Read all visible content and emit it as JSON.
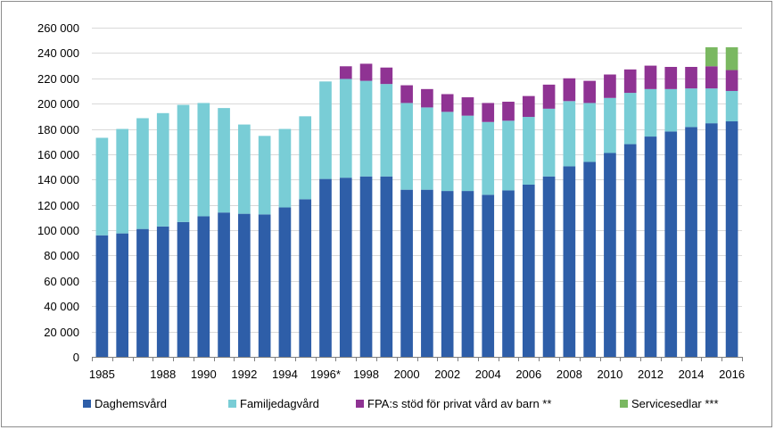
{
  "chart_data": {
    "type": "bar",
    "stacked": true,
    "categories": [
      "1985",
      "1986",
      "1987",
      "1988",
      "1989",
      "1990",
      "1991",
      "1992",
      "1993",
      "1994",
      "1995",
      "1996*",
      "1997",
      "1998",
      "1999",
      "2000",
      "2001",
      "2002",
      "2003",
      "2004",
      "2005",
      "2006",
      "2007",
      "2008",
      "2009",
      "2010",
      "2011",
      "2012",
      "2013",
      "2014",
      "2015",
      "2016"
    ],
    "x_tick_labels": [
      "1985",
      "",
      "",
      "1988",
      "",
      "1990",
      "",
      "1992",
      "",
      "1994",
      "",
      "1996*",
      "",
      "1998",
      "",
      "2000",
      "",
      "2002",
      "",
      "2004",
      "",
      "2006",
      "",
      "2008",
      "",
      "2010",
      "",
      "2012",
      "",
      "2014",
      "",
      "2016"
    ],
    "series": [
      {
        "name": "Daghemsvård",
        "color": "#2e5ea8",
        "values": [
          96000,
          97500,
          101000,
          103000,
          106500,
          111000,
          114000,
          113000,
          112500,
          118000,
          124500,
          140500,
          141500,
          142500,
          142500,
          132000,
          132000,
          131000,
          131000,
          128000,
          131500,
          136000,
          142500,
          150500,
          154000,
          161000,
          168000,
          174000,
          178000,
          181500,
          184500,
          186000
        ]
      },
      {
        "name": "Familjedagvård",
        "color": "#79cdd6",
        "values": [
          77000,
          82500,
          87500,
          89500,
          92500,
          89500,
          82500,
          70500,
          62000,
          62000,
          65500,
          77000,
          78000,
          75500,
          73000,
          68500,
          65000,
          62500,
          59500,
          57500,
          55000,
          53500,
          53500,
          51500,
          46500,
          43500,
          40500,
          37500,
          33500,
          30500,
          27500,
          24000
        ]
      },
      {
        "name": "FPA:s stöd  för privat vård av barn  **",
        "color": "#8f3393",
        "values": [
          0,
          0,
          0,
          0,
          0,
          0,
          0,
          0,
          0,
          0,
          0,
          0,
          10000,
          13500,
          13000,
          14000,
          14500,
          14000,
          14500,
          15000,
          15000,
          16500,
          19000,
          18000,
          17500,
          18500,
          18500,
          18500,
          17500,
          17000,
          17500,
          16500
        ]
      },
      {
        "name": "Servicesedlar ***",
        "color": "#7ab861",
        "values": [
          0,
          0,
          0,
          0,
          0,
          0,
          0,
          0,
          0,
          0,
          0,
          0,
          0,
          0,
          0,
          0,
          0,
          0,
          0,
          0,
          0,
          0,
          0,
          0,
          0,
          0,
          0,
          0,
          0,
          0,
          15000,
          18000
        ]
      }
    ],
    "y_ticks": [
      0,
      20000,
      40000,
      60000,
      80000,
      100000,
      120000,
      140000,
      160000,
      180000,
      200000,
      220000,
      240000,
      260000
    ],
    "y_tick_labels": [
      "0",
      "20 000",
      "40 000",
      "60 000",
      "80 000",
      "100 000",
      "120 000",
      "140 000",
      "160 000",
      "180 000",
      "200 000",
      "220 000",
      "240 000",
      "260 000"
    ],
    "ylim": [
      0,
      260000
    ],
    "title": "",
    "xlabel": "",
    "ylabel": "",
    "grid": true,
    "legend_position": "bottom"
  }
}
